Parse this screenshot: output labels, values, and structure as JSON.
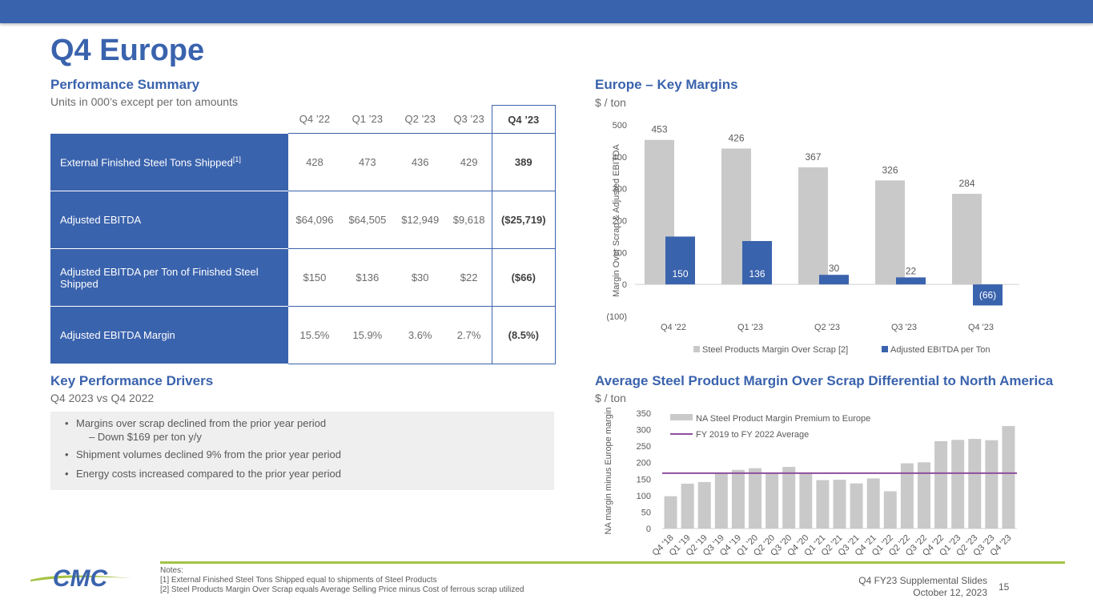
{
  "page": {
    "title": "Q4 Europe",
    "footer_title": "Q4 FY23 Supplemental Slides",
    "footer_date": "October 12, 2023",
    "page_number": "15",
    "logo_text": "CMC"
  },
  "performance": {
    "title": "Performance Summary",
    "subtitle": "Units in 000’s except per ton amounts",
    "columns": [
      "Q4 ’22",
      "Q1 ’23",
      "Q2 ’23",
      "Q3 ’23",
      "Q4 ’23"
    ],
    "rows": [
      {
        "label": "External Finished Steel Tons Shipped",
        "sup": "[1]",
        "values": [
          "428",
          "473",
          "436",
          "429",
          "389"
        ]
      },
      {
        "label": "Adjusted EBITDA",
        "sup": "",
        "values": [
          "$64,096",
          "$64,505",
          "$12,949",
          "$9,618",
          "($25,719)"
        ]
      },
      {
        "label": "Adjusted EBITDA per Ton of Finished Steel Shipped",
        "sup": "",
        "values": [
          "$150",
          "$136",
          "$30",
          "$22",
          "($66)"
        ]
      },
      {
        "label": "Adjusted EBITDA Margin",
        "sup": "",
        "values": [
          "15.5%",
          "15.9%",
          "3.6%",
          "2.7%",
          "(8.5%)"
        ]
      }
    ]
  },
  "drivers": {
    "title": "Key Performance Drivers",
    "subtitle": "Q4 2023 vs Q4 2022",
    "bullet1": "Margins over scrap declined from the prior year period",
    "sub1": "– Down $169 per ton y/y",
    "bullet2": "Shipment volumes declined 9% from the prior year period",
    "bullet3": "Energy costs increased compared to the prior year period"
  },
  "margins": {
    "title": "Europe – Key Margins",
    "subtitle": "$ / ton"
  },
  "differential": {
    "title": "Average Steel Product Margin Over Scrap Differential to North America",
    "subtitle": "$ / ton"
  },
  "colors": {
    "brand": "#3a63ad",
    "gray_bar": "#c9c9c9",
    "avg_line": "#8e4f9e",
    "footer_green": "#a4c243"
  },
  "chart_data": [
    {
      "type": "bar",
      "categories": [
        "Q4 '22",
        "Q1 '23",
        "Q2 '23",
        "Q3 '23",
        "Q4 '23"
      ],
      "series": [
        {
          "name": "Steel Products Margin Over Scrap [2]",
          "values": [
            453,
            426,
            367,
            326,
            284
          ],
          "color": "#c9c9c9"
        },
        {
          "name": "Adjusted EBITDA per Ton",
          "values": [
            150,
            136,
            30,
            22,
            -66
          ],
          "color": "#3a63ad"
        }
      ],
      "data_labels": [
        [
          "453",
          "426",
          "367",
          "326",
          "284"
        ],
        [
          "150",
          "136",
          "30",
          "22",
          "(66)"
        ]
      ],
      "ylabel": "Margin Over Scrap & Adjusted EBITDA",
      "yticks": [
        "(100)",
        "0",
        "100",
        "200",
        "300",
        "400",
        "500"
      ],
      "ylim": [
        -100,
        500
      ],
      "legend": "bottom"
    },
    {
      "type": "bar",
      "categories": [
        "Q4 '18",
        "Q1 '19",
        "Q2 '19",
        "Q3 '19",
        "Q4 '19",
        "Q1 '20",
        "Q2 '20",
        "Q3 '20",
        "Q4 '20",
        "Q1 '21",
        "Q2 '21",
        "Q3 '21",
        "Q4 '21",
        "Q1 '22",
        "Q2 '22",
        "Q3 '22",
        "Q4 '22",
        "Q1 '23",
        "Q2 '23",
        "Q3 '23",
        "Q4 '23"
      ],
      "series": [
        {
          "name": "NA Steel Product Margin Premium to Europe",
          "values": [
            98,
            136,
            141,
            170,
            178,
            183,
            170,
            187,
            170,
            147,
            148,
            137,
            152,
            113,
            198,
            201,
            265,
            269,
            272,
            268,
            311
          ],
          "color": "#c9c9c9"
        },
        {
          "name": "FY 2019 to FY 2022 Average",
          "type": "line",
          "value": 168,
          "color": "#8e4f9e"
        }
      ],
      "ylabel": "NA margin minus Europe margin",
      "yticks": [
        "0",
        "50",
        "100",
        "150",
        "200",
        "250",
        "300",
        "350"
      ],
      "ylim": [
        0,
        350
      ],
      "legend": "top-left"
    }
  ],
  "notes": {
    "heading": "Notes:",
    "note1": "[1]  External Finished Steel Tons Shipped equal to shipments of Steel Products",
    "note2": "[2]  Steel Products Margin Over Scrap equals Average Selling Price minus Cost of ferrous scrap utilized"
  }
}
